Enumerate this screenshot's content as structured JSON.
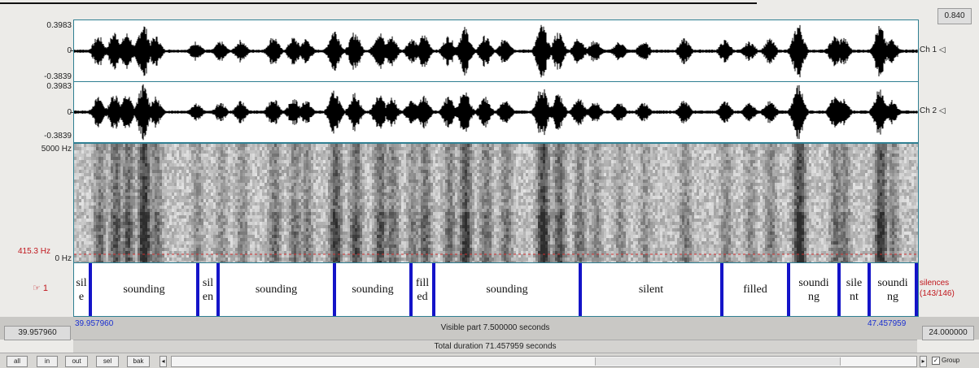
{
  "cursor_time": "0.840",
  "waveform": {
    "ch1": {
      "max": "0.3983",
      "zero": "0",
      "min": "-0.3839",
      "label": "Ch 1 ◁"
    },
    "ch2": {
      "max": "0.3983",
      "zero": "0",
      "min": "-0.3839",
      "label": "Ch 2 ◁"
    }
  },
  "spectrogram": {
    "top_label": "5000 Hz",
    "pitch_label": "415.3 Hz",
    "bottom_label": "0 Hz"
  },
  "tier": {
    "number": "1",
    "name_line1": "silences",
    "name_line2": "(143/146)",
    "intervals": [
      {
        "line1": "sil",
        "line2": "e"
      },
      {
        "line1": "sounding",
        "line2": ""
      },
      {
        "line1": "sil",
        "line2": "en"
      },
      {
        "line1": "sounding",
        "line2": ""
      },
      {
        "line1": "sounding",
        "line2": ""
      },
      {
        "line1": "fill",
        "line2": "ed"
      },
      {
        "line1": "sounding",
        "line2": ""
      },
      {
        "line1": "silent",
        "line2": ""
      },
      {
        "line1": "filled",
        "line2": ""
      },
      {
        "line1": "soundi",
        "line2": "ng"
      },
      {
        "line1": "sile",
        "line2": "nt"
      },
      {
        "line1": "soundi",
        "line2": "ng"
      }
    ]
  },
  "times": {
    "left_outer": "39.957960",
    "visible_start": "39.957960",
    "visible_end": "47.457959",
    "right_outer": "24.000000",
    "visible_part": "Visible part 7.500000 seconds",
    "total_duration": "Total duration 71.457959 seconds"
  },
  "buttons": {
    "all": "all",
    "in": "in",
    "out": "out",
    "sel": "sel",
    "bak": "bak",
    "left": "◂",
    "right": "▸"
  },
  "group": {
    "checked": "✓",
    "label": "Group"
  },
  "colors": {
    "boundary": "#1414c8",
    "tier_name": "#c0161c",
    "panel_border": "#2f7f92",
    "time_blue": "#1a2fd0"
  }
}
